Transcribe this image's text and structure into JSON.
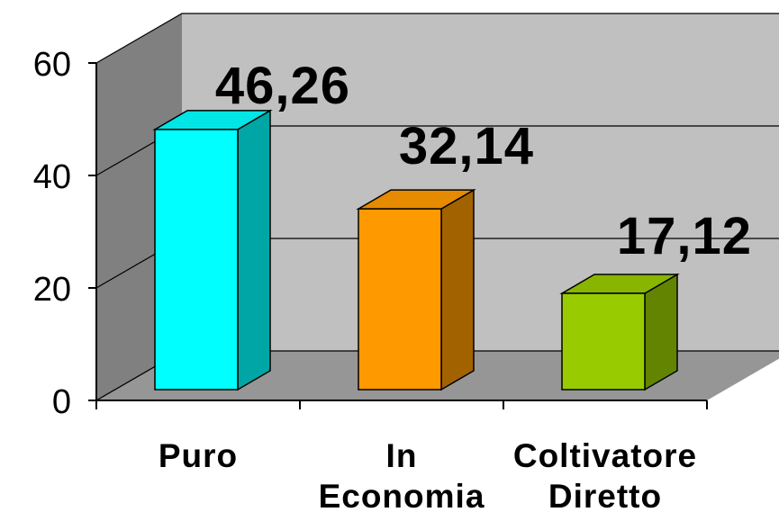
{
  "chart_data": {
    "type": "bar",
    "three_d": true,
    "categories": [
      [
        "Puro"
      ],
      [
        "In",
        "Economia"
      ],
      [
        "Coltivatore",
        "Diretto"
      ]
    ],
    "values": [
      46.26,
      32.14,
      17.12
    ],
    "value_labels": [
      "46,26",
      "32,14",
      "17,12"
    ],
    "colors": [
      {
        "front": "#00ffff",
        "side": "#00a6a6",
        "top": "#00e6e6"
      },
      {
        "front": "#ff9900",
        "side": "#a36200",
        "top": "#e68a00"
      },
      {
        "front": "#99cc00",
        "side": "#638400",
        "top": "#88b600"
      }
    ],
    "ylim": [
      0,
      60
    ],
    "yticks": [
      0,
      20,
      40,
      60
    ],
    "grid": true,
    "legend": "none",
    "title": "",
    "xlabel": "",
    "ylabel": "",
    "wall_colors": {
      "back": "#c0c0c0",
      "side": "#808080",
      "floor": "#969696"
    }
  }
}
